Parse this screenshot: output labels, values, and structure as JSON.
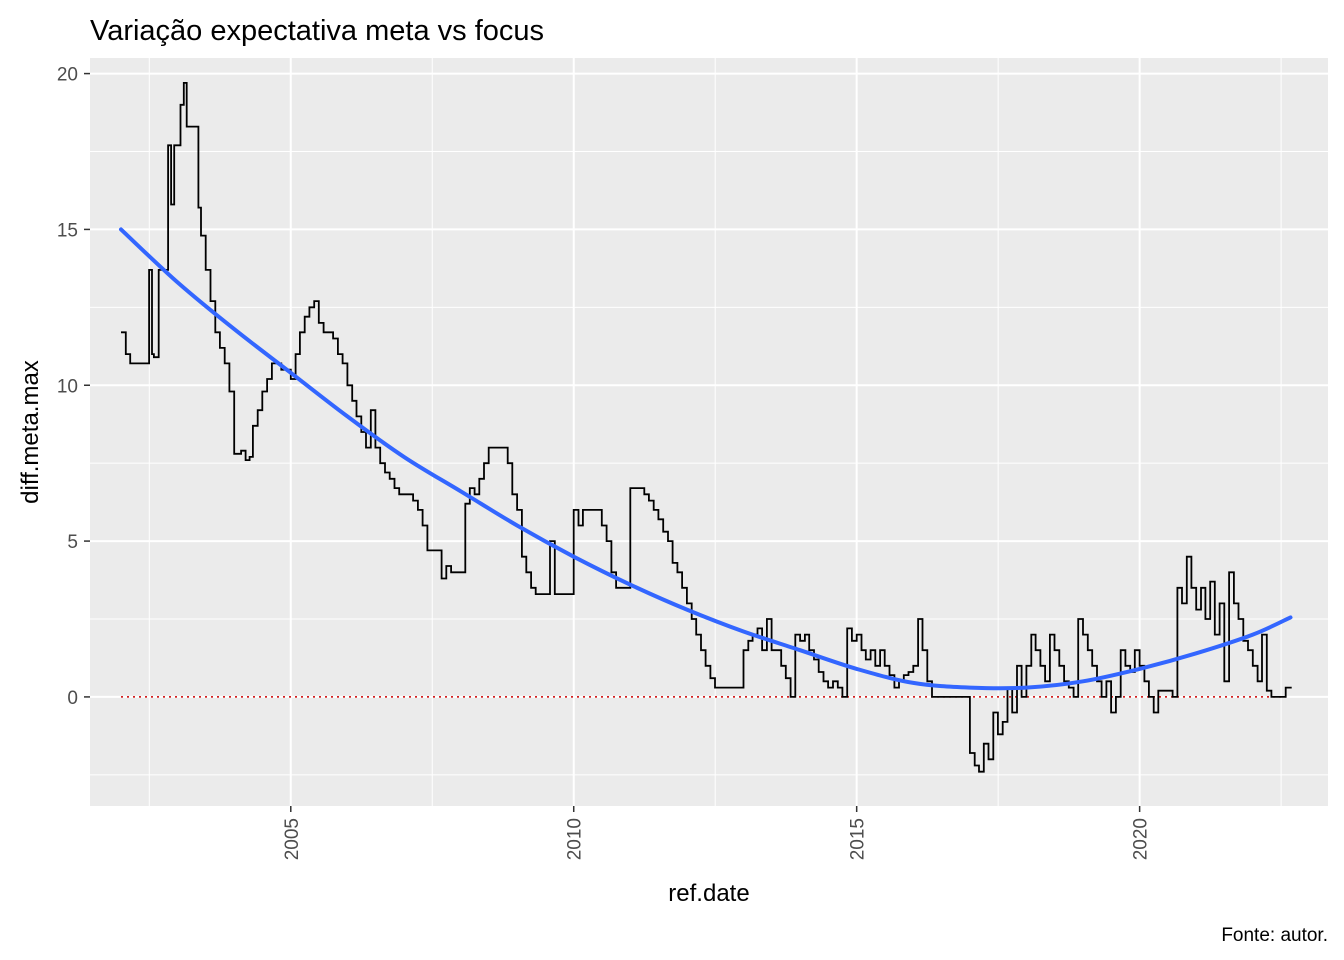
{
  "chart_data": {
    "type": "line",
    "title": "Variação expectativa meta vs focus",
    "xlabel": "ref.date",
    "ylabel": "diff.meta.max",
    "caption": "Fonte: autor.",
    "x_ticks": [
      "2005",
      "2010",
      "2015",
      "2020"
    ],
    "y_ticks": [
      "0",
      "5",
      "10",
      "15",
      "20"
    ],
    "xlim": [
      "2001-06-15",
      "2023-05-01"
    ],
    "ylim": [
      -3.5,
      20.5
    ],
    "grid": true,
    "background": "#EBEBEB",
    "colors": {
      "series": "#000000",
      "smooth": "#3366FF",
      "reference": "#CC0000"
    },
    "reference_line": {
      "y": 0,
      "style": "dotted"
    },
    "series": [
      {
        "type": "step",
        "values": [
          [
            "2002-01-01",
            11.7
          ],
          [
            "2002-02-01",
            11.0
          ],
          [
            "2002-03-01",
            10.7
          ],
          [
            "2002-06-01",
            10.7
          ],
          [
            "2002-07-01",
            13.7
          ],
          [
            "2002-07-20",
            11.0
          ],
          [
            "2002-08-01",
            10.9
          ],
          [
            "2002-09-01",
            13.7
          ],
          [
            "2002-10-15",
            13.7
          ],
          [
            "2002-11-01",
            17.7
          ],
          [
            "2002-11-20",
            15.8
          ],
          [
            "2002-12-10",
            17.7
          ],
          [
            "2003-01-01",
            17.7
          ],
          [
            "2003-01-20",
            19.0
          ],
          [
            "2003-02-10",
            19.7
          ],
          [
            "2003-03-01",
            18.3
          ],
          [
            "2003-03-20",
            18.3
          ],
          [
            "2003-05-01",
            18.3
          ],
          [
            "2003-05-15",
            15.7
          ],
          [
            "2003-06-01",
            14.8
          ],
          [
            "2003-07-01",
            13.7
          ],
          [
            "2003-08-01",
            12.7
          ],
          [
            "2003-09-01",
            11.7
          ],
          [
            "2003-10-01",
            11.2
          ],
          [
            "2003-11-01",
            10.7
          ],
          [
            "2003-12-01",
            9.8
          ],
          [
            "2004-01-01",
            7.8
          ],
          [
            "2004-02-15",
            7.9
          ],
          [
            "2004-03-15",
            7.6
          ],
          [
            "2004-04-10",
            7.7
          ],
          [
            "2004-05-01",
            8.7
          ],
          [
            "2004-06-01",
            9.2
          ],
          [
            "2004-07-01",
            9.8
          ],
          [
            "2004-08-01",
            10.2
          ],
          [
            "2004-09-01",
            10.7
          ],
          [
            "2004-10-15",
            10.7
          ],
          [
            "2004-11-01",
            10.5
          ],
          [
            "2005-01-01",
            10.2
          ],
          [
            "2005-02-01",
            11.0
          ],
          [
            "2005-03-01",
            11.7
          ],
          [
            "2005-04-01",
            12.2
          ],
          [
            "2005-05-01",
            12.5
          ],
          [
            "2005-06-01",
            12.7
          ],
          [
            "2005-07-01",
            12.0
          ],
          [
            "2005-08-01",
            11.7
          ],
          [
            "2005-10-01",
            11.5
          ],
          [
            "2005-11-01",
            11.0
          ],
          [
            "2005-12-01",
            10.7
          ],
          [
            "2006-01-01",
            10.0
          ],
          [
            "2006-02-01",
            9.5
          ],
          [
            "2006-03-01",
            9.0
          ],
          [
            "2006-04-01",
            8.5
          ],
          [
            "2006-05-01",
            8.0
          ],
          [
            "2006-06-01",
            9.2
          ],
          [
            "2006-07-01",
            8.0
          ],
          [
            "2006-08-01",
            7.5
          ],
          [
            "2006-09-01",
            7.2
          ],
          [
            "2006-10-01",
            7.0
          ],
          [
            "2006-11-01",
            6.7
          ],
          [
            "2006-12-01",
            6.5
          ],
          [
            "2007-01-01",
            6.5
          ],
          [
            "2007-03-01",
            6.3
          ],
          [
            "2007-04-01",
            6.0
          ],
          [
            "2007-05-01",
            5.5
          ],
          [
            "2007-06-01",
            4.7
          ],
          [
            "2007-08-01",
            4.7
          ],
          [
            "2007-09-01",
            3.8
          ],
          [
            "2007-10-01",
            4.2
          ],
          [
            "2007-11-01",
            4.0
          ],
          [
            "2008-01-01",
            4.0
          ],
          [
            "2008-02-01",
            6.2
          ],
          [
            "2008-03-01",
            6.7
          ],
          [
            "2008-04-01",
            6.5
          ],
          [
            "2008-05-01",
            7.0
          ],
          [
            "2008-06-01",
            7.5
          ],
          [
            "2008-07-01",
            8.0
          ],
          [
            "2008-10-01",
            8.0
          ],
          [
            "2008-11-01",
            7.5
          ],
          [
            "2008-12-01",
            6.5
          ],
          [
            "2009-01-01",
            6.0
          ],
          [
            "2009-02-01",
            4.5
          ],
          [
            "2009-03-01",
            4.0
          ],
          [
            "2009-04-01",
            3.5
          ],
          [
            "2009-05-01",
            3.3
          ],
          [
            "2009-07-01",
            3.3
          ],
          [
            "2009-08-01",
            5.0
          ],
          [
            "2009-09-01",
            3.3
          ],
          [
            "2009-12-01",
            3.3
          ],
          [
            "2010-01-01",
            6.0
          ],
          [
            "2010-02-01",
            5.5
          ],
          [
            "2010-03-01",
            6.0
          ],
          [
            "2010-06-01",
            6.0
          ],
          [
            "2010-07-01",
            5.5
          ],
          [
            "2010-08-01",
            5.0
          ],
          [
            "2010-09-01",
            4.0
          ],
          [
            "2010-10-01",
            3.5
          ],
          [
            "2010-12-01",
            3.5
          ],
          [
            "2011-01-01",
            6.7
          ],
          [
            "2011-03-01",
            6.7
          ],
          [
            "2011-04-01",
            6.5
          ],
          [
            "2011-05-01",
            6.3
          ],
          [
            "2011-06-01",
            6.0
          ],
          [
            "2011-07-01",
            5.7
          ],
          [
            "2011-08-01",
            5.3
          ],
          [
            "2011-09-01",
            5.0
          ],
          [
            "2011-10-01",
            4.3
          ],
          [
            "2011-11-01",
            4.0
          ],
          [
            "2011-12-01",
            3.5
          ],
          [
            "2012-01-01",
            3.0
          ],
          [
            "2012-02-01",
            2.5
          ],
          [
            "2012-03-01",
            2.0
          ],
          [
            "2012-04-01",
            1.5
          ],
          [
            "2012-05-01",
            1.0
          ],
          [
            "2012-06-01",
            0.6
          ],
          [
            "2012-07-01",
            0.3
          ],
          [
            "2012-12-01",
            0.3
          ],
          [
            "2013-01-01",
            1.5
          ],
          [
            "2013-02-01",
            1.8
          ],
          [
            "2013-03-01",
            2.0
          ],
          [
            "2013-04-01",
            2.2
          ],
          [
            "2013-05-01",
            1.5
          ],
          [
            "2013-06-01",
            2.5
          ],
          [
            "2013-07-01",
            1.5
          ],
          [
            "2013-08-01",
            1.5
          ],
          [
            "2013-09-01",
            1.0
          ],
          [
            "2013-10-01",
            0.6
          ],
          [
            "2013-11-01",
            0.0
          ],
          [
            "2013-12-01",
            2.0
          ],
          [
            "2014-01-01",
            1.8
          ],
          [
            "2014-02-01",
            2.0
          ],
          [
            "2014-03-01",
            1.5
          ],
          [
            "2014-04-01",
            1.2
          ],
          [
            "2014-05-01",
            0.8
          ],
          [
            "2014-06-01",
            0.5
          ],
          [
            "2014-07-01",
            0.3
          ],
          [
            "2014-08-01",
            0.5
          ],
          [
            "2014-09-01",
            0.3
          ],
          [
            "2014-10-01",
            0.0
          ],
          [
            "2014-11-01",
            2.2
          ],
          [
            "2014-12-01",
            1.8
          ],
          [
            "2015-01-01",
            2.0
          ],
          [
            "2015-02-01",
            1.5
          ],
          [
            "2015-03-01",
            1.2
          ],
          [
            "2015-04-01",
            1.5
          ],
          [
            "2015-05-01",
            1.0
          ],
          [
            "2015-06-01",
            1.5
          ],
          [
            "2015-07-01",
            1.0
          ],
          [
            "2015-08-01",
            0.7
          ],
          [
            "2015-09-01",
            0.3
          ],
          [
            "2015-10-01",
            0.5
          ],
          [
            "2015-11-01",
            0.7
          ],
          [
            "2015-12-01",
            0.8
          ],
          [
            "2016-01-01",
            1.0
          ],
          [
            "2016-02-01",
            2.5
          ],
          [
            "2016-03-01",
            1.5
          ],
          [
            "2016-04-01",
            0.5
          ],
          [
            "2016-05-01",
            0.0
          ],
          [
            "2016-12-01",
            0.0
          ],
          [
            "2017-01-01",
            -1.8
          ],
          [
            "2017-02-01",
            -2.2
          ],
          [
            "2017-03-01",
            -2.4
          ],
          [
            "2017-04-01",
            -1.5
          ],
          [
            "2017-05-01",
            -2.0
          ],
          [
            "2017-06-01",
            -0.5
          ],
          [
            "2017-07-01",
            -1.2
          ],
          [
            "2017-08-01",
            -0.8
          ],
          [
            "2017-09-01",
            0.3
          ],
          [
            "2017-10-01",
            -0.5
          ],
          [
            "2017-11-01",
            1.0
          ],
          [
            "2017-12-01",
            0.0
          ],
          [
            "2018-01-01",
            1.0
          ],
          [
            "2018-02-01",
            2.0
          ],
          [
            "2018-03-01",
            1.5
          ],
          [
            "2018-04-01",
            1.0
          ],
          [
            "2018-05-01",
            0.5
          ],
          [
            "2018-06-01",
            2.0
          ],
          [
            "2018-07-01",
            1.5
          ],
          [
            "2018-08-01",
            1.0
          ],
          [
            "2018-09-01",
            0.5
          ],
          [
            "2018-10-01",
            0.3
          ],
          [
            "2018-11-01",
            0.0
          ],
          [
            "2018-12-01",
            2.5
          ],
          [
            "2019-01-01",
            2.0
          ],
          [
            "2019-02-01",
            1.5
          ],
          [
            "2019-03-01",
            1.0
          ],
          [
            "2019-04-01",
            0.5
          ],
          [
            "2019-05-01",
            0.0
          ],
          [
            "2019-06-01",
            0.5
          ],
          [
            "2019-07-01",
            -0.5
          ],
          [
            "2019-08-01",
            0.0
          ],
          [
            "2019-09-01",
            1.5
          ],
          [
            "2019-10-01",
            1.0
          ],
          [
            "2019-11-01",
            0.8
          ],
          [
            "2019-12-01",
            1.5
          ],
          [
            "2020-01-01",
            1.0
          ],
          [
            "2020-02-01",
            0.5
          ],
          [
            "2020-03-01",
            0.0
          ],
          [
            "2020-04-01",
            -0.5
          ],
          [
            "2020-05-01",
            0.2
          ],
          [
            "2020-07-01",
            0.2
          ],
          [
            "2020-08-01",
            0.0
          ],
          [
            "2020-09-01",
            3.5
          ],
          [
            "2020-10-01",
            3.0
          ],
          [
            "2020-11-01",
            4.5
          ],
          [
            "2020-12-01",
            3.5
          ],
          [
            "2021-01-01",
            2.8
          ],
          [
            "2021-02-01",
            3.5
          ],
          [
            "2021-03-01",
            2.5
          ],
          [
            "2021-04-01",
            3.7
          ],
          [
            "2021-05-01",
            2.0
          ],
          [
            "2021-06-01",
            3.0
          ],
          [
            "2021-07-01",
            0.5
          ],
          [
            "2021-08-01",
            4.0
          ],
          [
            "2021-09-01",
            3.0
          ],
          [
            "2021-10-01",
            2.5
          ],
          [
            "2021-11-01",
            1.8
          ],
          [
            "2021-12-01",
            1.5
          ],
          [
            "2022-01-01",
            1.0
          ],
          [
            "2022-02-01",
            0.5
          ],
          [
            "2022-03-01",
            2.0
          ],
          [
            "2022-04-01",
            0.2
          ],
          [
            "2022-05-01",
            0.0
          ],
          [
            "2022-07-01",
            0.0
          ],
          [
            "2022-08-01",
            0.3
          ]
        ]
      },
      {
        "type": "smooth",
        "values": [
          [
            "2002-01-01",
            15.0
          ],
          [
            "2003-01-01",
            13.3
          ],
          [
            "2004-01-01",
            11.8
          ],
          [
            "2005-01-01",
            10.4
          ],
          [
            "2006-01-01",
            9.0
          ],
          [
            "2007-01-01",
            7.7
          ],
          [
            "2008-01-01",
            6.6
          ],
          [
            "2009-01-01",
            5.5
          ],
          [
            "2010-01-01",
            4.5
          ],
          [
            "2011-01-01",
            3.6
          ],
          [
            "2012-01-01",
            2.8
          ],
          [
            "2013-01-01",
            2.1
          ],
          [
            "2014-01-01",
            1.5
          ],
          [
            "2015-01-01",
            0.9
          ],
          [
            "2016-01-01",
            0.45
          ],
          [
            "2017-01-01",
            0.3
          ],
          [
            "2018-01-01",
            0.3
          ],
          [
            "2019-01-01",
            0.5
          ],
          [
            "2020-01-01",
            0.9
          ],
          [
            "2021-01-01",
            1.4
          ],
          [
            "2022-01-01",
            2.0
          ],
          [
            "2022-09-01",
            2.55
          ]
        ]
      }
    ]
  }
}
